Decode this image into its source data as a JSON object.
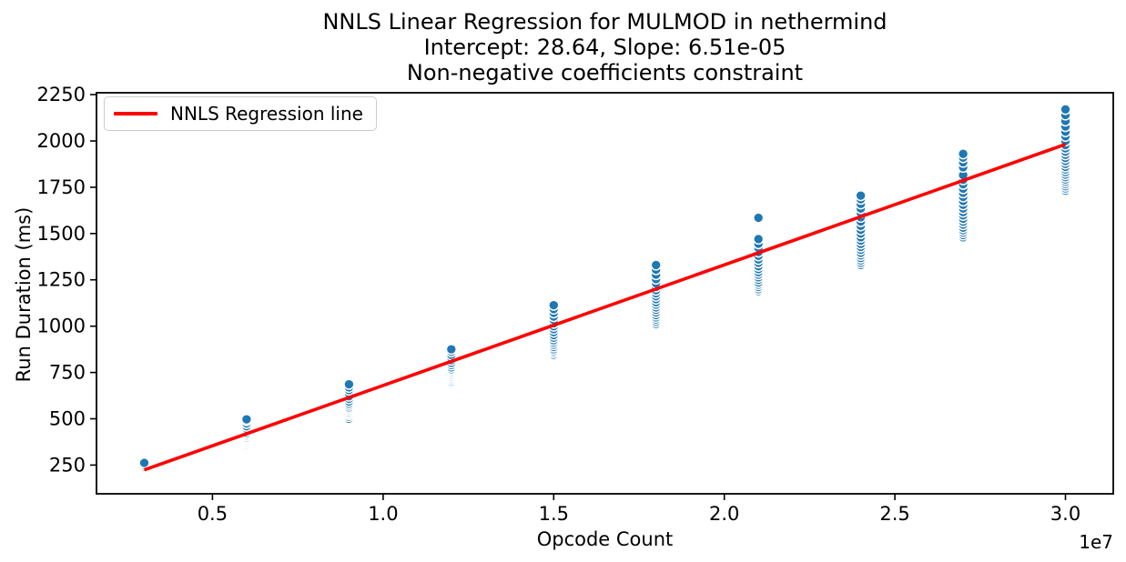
{
  "title": {
    "line1": "NNLS Linear Regression for MULMOD in nethermind",
    "line2": "Intercept: 28.64, Slope: 6.51e-05",
    "line3": "Non-negative coefficients constraint"
  },
  "legend": {
    "label": "NNLS Regression line",
    "line_color": "#ff0000",
    "position": "upper left"
  },
  "chart_data": {
    "type": "scatter",
    "title": "NNLS Linear Regression for MULMOD in nethermind\nIntercept: 28.64, Slope: 6.51e-05\nNon-negative coefficients constraint",
    "xlabel": "Opcode Count",
    "ylabel": "Run Duration (ms)",
    "x_offset_label": "1e7",
    "grid": false,
    "legend_position": "upper left",
    "marker_color": "#1f77b4",
    "marker_edge_color": "#ffffff",
    "line_color": "#ff0000",
    "axis_color": "#000000",
    "xlim": [
      1600000,
      31400000
    ],
    "ylim": [
      95,
      2260
    ],
    "x_ticks": [
      5000000,
      10000000,
      15000000,
      20000000,
      25000000,
      30000000
    ],
    "x_tick_labels": [
      "0.5",
      "1.0",
      "1.5",
      "2.0",
      "2.5",
      "3.0"
    ],
    "y_ticks": [
      250,
      500,
      750,
      1000,
      1250,
      1500,
      1750,
      2000,
      2250
    ],
    "y_tick_labels": [
      "250",
      "500",
      "750",
      "1000",
      "1250",
      "1500",
      "1750",
      "2000",
      "2250"
    ],
    "regression": {
      "intercept": 28.64,
      "slope": 6.51e-05,
      "x_start": 3000000,
      "x_end": 30000000
    },
    "clusters": [
      {
        "opcode_count": 3000000,
        "run_durations_ms": [
          200,
          206,
          210,
          214,
          218,
          222,
          226,
          230,
          236,
          243,
          252,
          262
        ]
      },
      {
        "opcode_count": 6000000,
        "run_durations_ms": [
          360,
          368,
          374,
          380,
          386,
          393,
          400,
          408,
          416,
          425,
          436,
          448,
          460,
          475,
          490,
          497
        ]
      },
      {
        "opcode_count": 9000000,
        "run_durations_ms": [
          500,
          512,
          522,
          530,
          538,
          546,
          554,
          562,
          572,
          582,
          594,
          608,
          622,
          638,
          655,
          670,
          686
        ]
      },
      {
        "opcode_count": 12000000,
        "run_durations_ms": [
          695,
          703,
          712,
          720,
          728,
          736,
          744,
          752,
          760,
          768,
          778,
          790,
          802,
          816,
          830,
          845,
          862,
          875
        ]
      },
      {
        "opcode_count": 15000000,
        "run_durations_ms": [
          845,
          856,
          866,
          876,
          888,
          900,
          912,
          924,
          938,
          952,
          968,
          984,
          1000,
          1016,
          1034,
          1052,
          1072,
          1092,
          1113
        ]
      },
      {
        "opcode_count": 18000000,
        "run_durations_ms": [
          1012,
          1024,
          1036,
          1048,
          1060,
          1074,
          1088,
          1102,
          1116,
          1130,
          1146,
          1162,
          1178,
          1194,
          1212,
          1232,
          1254,
          1278,
          1305,
          1330
        ]
      },
      {
        "opcode_count": 21000000,
        "run_durations_ms": [
          1190,
          1200,
          1212,
          1224,
          1236,
          1250,
          1264,
          1278,
          1292,
          1308,
          1324,
          1342,
          1360,
          1380,
          1400,
          1422,
          1445,
          1470,
          1585
        ]
      },
      {
        "opcode_count": 24000000,
        "run_durations_ms": [
          1330,
          1342,
          1355,
          1368,
          1382,
          1396,
          1412,
          1428,
          1444,
          1462,
          1480,
          1500,
          1520,
          1542,
          1565,
          1588,
          1612,
          1635,
          1660,
          1685,
          1705
        ]
      },
      {
        "opcode_count": 27000000,
        "run_durations_ms": [
          1480,
          1492,
          1505,
          1518,
          1532,
          1548,
          1564,
          1580,
          1598,
          1616,
          1635,
          1655,
          1676,
          1698,
          1720,
          1742,
          1766,
          1790,
          1815,
          1858,
          1885,
          1910,
          1930
        ]
      },
      {
        "opcode_count": 30000000,
        "run_durations_ms": [
          1732,
          1744,
          1756,
          1768,
          1780,
          1792,
          1805,
          1818,
          1832,
          1846,
          1860,
          1876,
          1892,
          1908,
          1925,
          1942,
          1960,
          1978,
          2000,
          2025,
          2050,
          2078,
          2108,
          2140,
          2170
        ]
      }
    ]
  }
}
